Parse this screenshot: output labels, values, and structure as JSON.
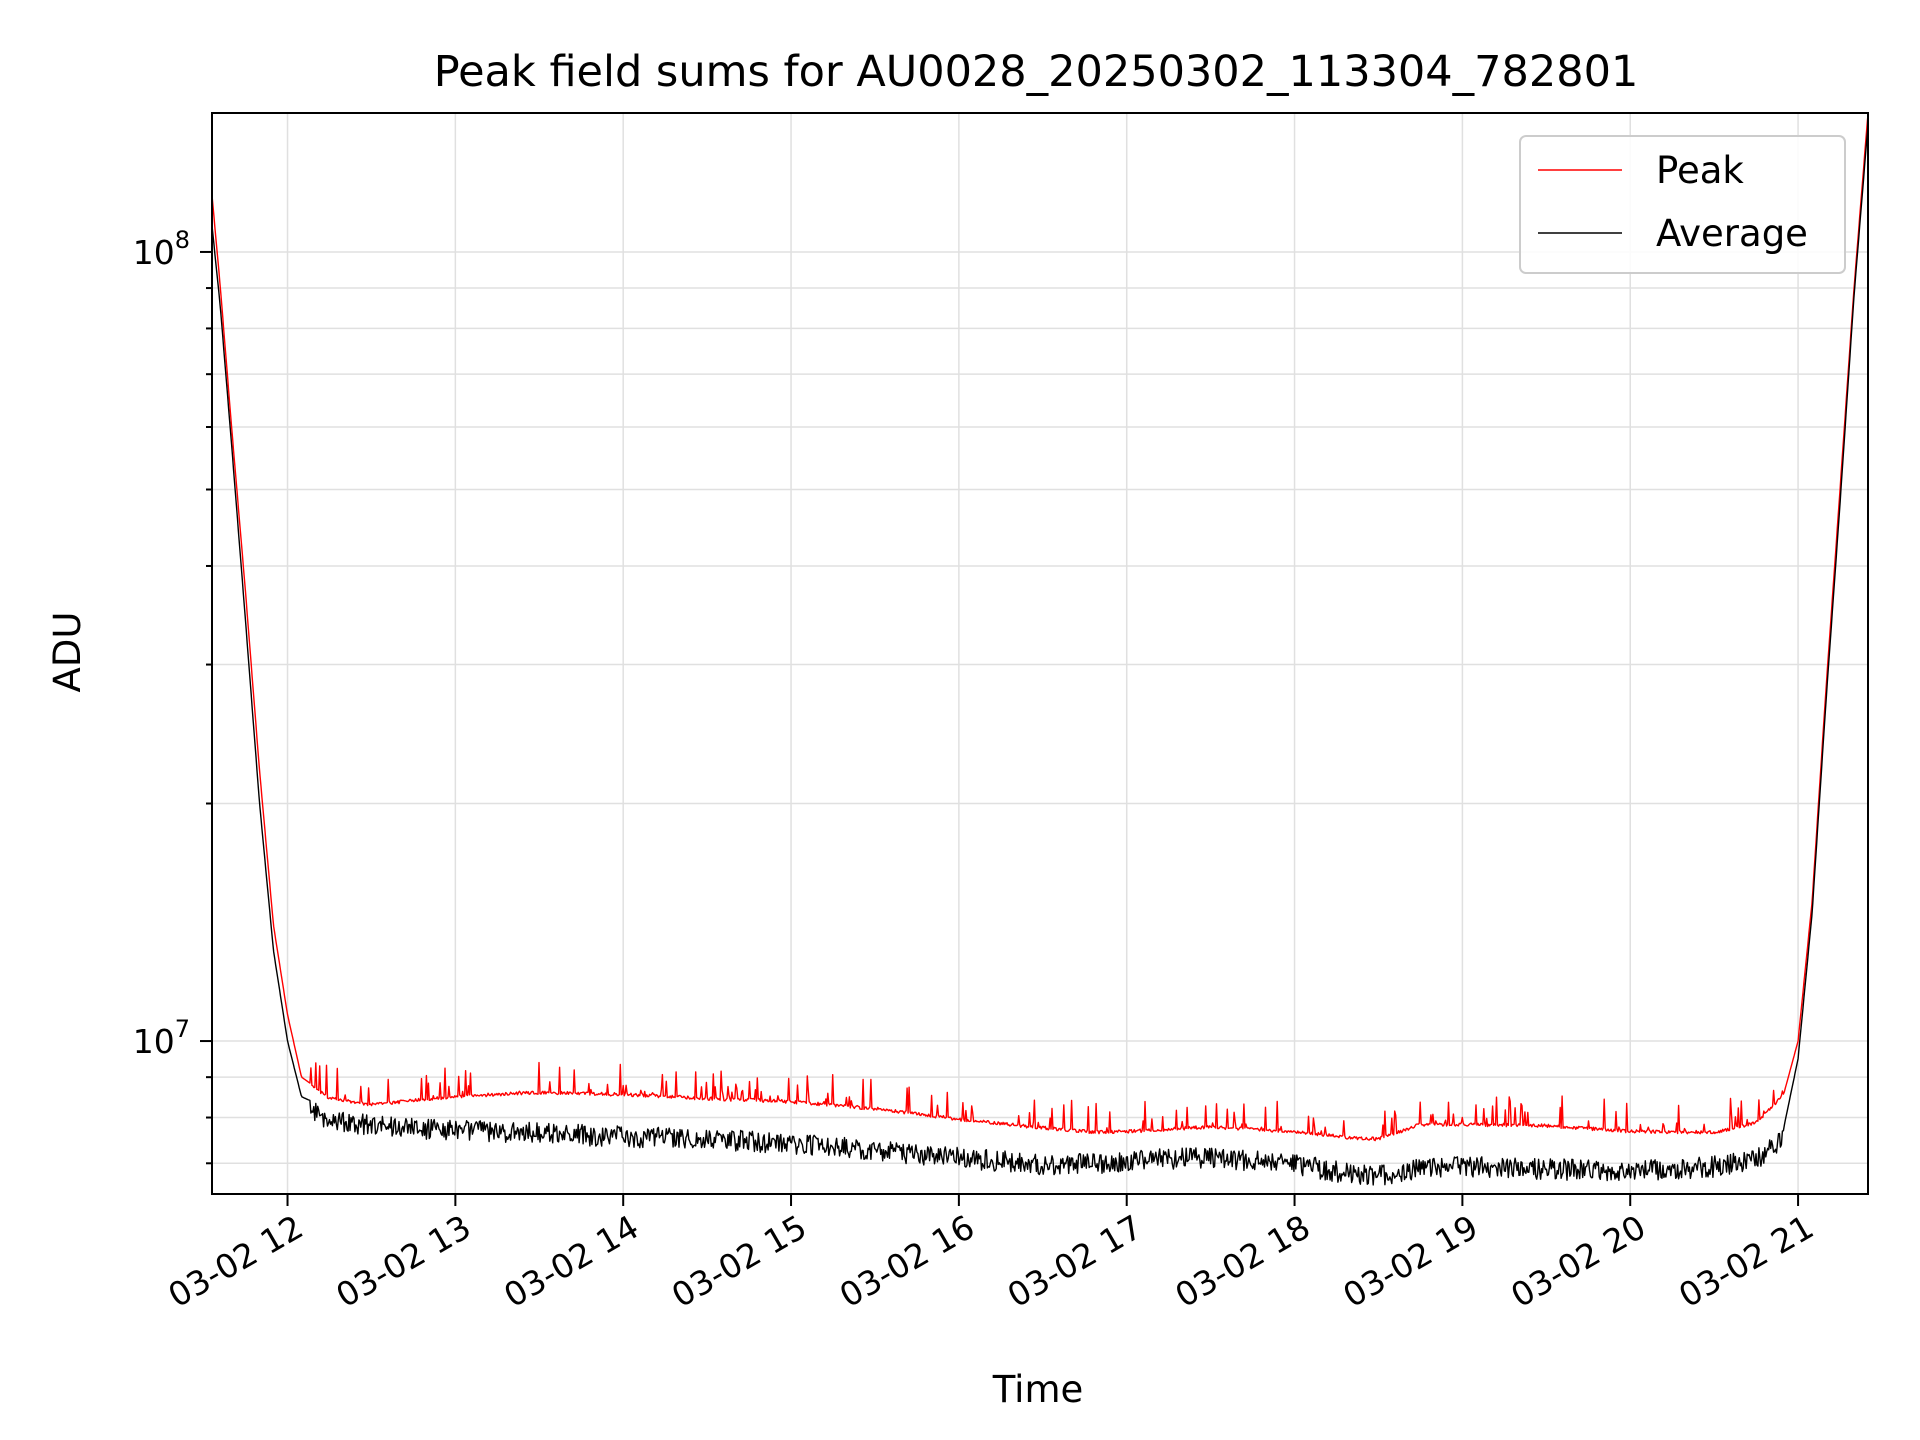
{
  "chart_data": {
    "type": "line",
    "title": "Peak field sums for AU0028_20250302_113304_782801",
    "xlabel": "Time",
    "ylabel": "ADU",
    "yscale": "log",
    "ylim": [
      6400000,
      150000000
    ],
    "xlim": [
      "03-02 11:33",
      "03-02 21:25"
    ],
    "grid": true,
    "legend": "top-right",
    "x_ticks": [
      "03-02 12",
      "03-02 13",
      "03-02 14",
      "03-02 15",
      "03-02 16",
      "03-02 17",
      "03-02 18",
      "03-02 19",
      "03-02 20",
      "03-02 21"
    ],
    "y_ticks": [
      {
        "value": 10000000,
        "base": "10",
        "exp": "7"
      },
      {
        "value": 100000000,
        "base": "10",
        "exp": "8"
      }
    ],
    "x": [
      "03-02 11:33",
      "03-02 11:36",
      "03-02 11:40",
      "03-02 11:45",
      "03-02 11:50",
      "03-02 11:55",
      "03-02 12:00",
      "03-02 12:05",
      "03-02 12:15",
      "03-02 12:30",
      "03-02 13:00",
      "03-02 13:30",
      "03-02 14:00",
      "03-02 14:30",
      "03-02 15:00",
      "03-02 15:30",
      "03-02 16:00",
      "03-02 16:30",
      "03-02 16:50",
      "03-02 17:00",
      "03-02 17:30",
      "03-02 18:00",
      "03-02 18:20",
      "03-02 18:30",
      "03-02 18:45",
      "03-02 19:00",
      "03-02 19:30",
      "03-02 20:00",
      "03-02 20:30",
      "03-02 20:45",
      "03-02 20:55",
      "03-02 21:00",
      "03-02 21:05",
      "03-02 21:10",
      "03-02 21:15",
      "03-02 21:20",
      "03-02 21:25"
    ],
    "series": [
      {
        "name": "Peak",
        "color": "#ff0000",
        "values": [
          118000000,
          90000000,
          60000000,
          37000000,
          22000000,
          14000000,
          10800000,
          9000000,
          8500000,
          8350000,
          8550000,
          8650000,
          8600000,
          8500000,
          8420000,
          8250000,
          8000000,
          7800000,
          7700000,
          7720000,
          7820000,
          7720000,
          7580000,
          7550000,
          7880000,
          7880000,
          7850000,
          7720000,
          7700000,
          7920000,
          8600000,
          10000000,
          15000000,
          28000000,
          50000000,
          90000000,
          150000000
        ]
      },
      {
        "name": "Average",
        "color": "#000000",
        "values": [
          108000000,
          85000000,
          57000000,
          34000000,
          20000000,
          13000000,
          10000000,
          8500000,
          8200000,
          8050000,
          7950000,
          7880000,
          7800000,
          7750000,
          7650000,
          7500000,
          7330000,
          7200000,
          7200000,
          7280000,
          7350000,
          7200000,
          7000000,
          6950000,
          7100000,
          7150000,
          7100000,
          7050000,
          7150000,
          7300000,
          7800000,
          9500000,
          14500000,
          27000000,
          48000000,
          88000000,
          145000000
        ]
      }
    ]
  }
}
